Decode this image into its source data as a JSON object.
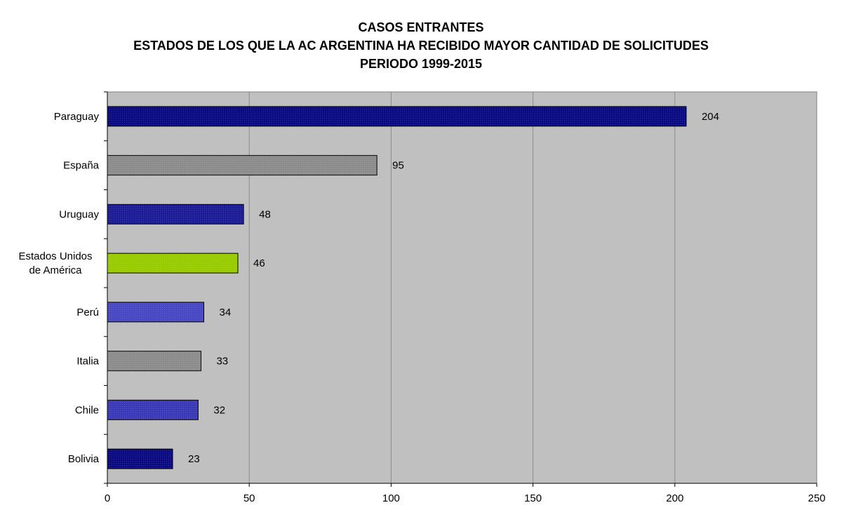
{
  "chart_data": {
    "type": "bar",
    "orientation": "horizontal",
    "title": [
      "CASOS ENTRANTES",
      "ESTADOS DE LOS QUE LA AC ARGENTINA HA RECIBIDO MAYOR CANTIDAD DE SOLICITUDES",
      "PERIODO 1999-2015"
    ],
    "categories": [
      [
        "Paraguay"
      ],
      [
        "España"
      ],
      [
        "Uruguay"
      ],
      [
        "Estados Unidos",
        "de América"
      ],
      [
        "Perú"
      ],
      [
        "Italia"
      ],
      [
        "Chile"
      ],
      [
        "Bolivia"
      ]
    ],
    "values": [
      204,
      95,
      48,
      46,
      34,
      33,
      32,
      23
    ],
    "bar_colors": [
      "#0a0a82",
      "#8c8c8c",
      "#1c1c96",
      "#99cc00",
      "#4848c4",
      "#8c8c8c",
      "#3a3ab8",
      "#0a0a82"
    ],
    "xlim": [
      0,
      250
    ],
    "x_ticks": [
      0,
      50,
      100,
      150,
      200,
      250
    ],
    "grid": true,
    "plot_background": "#c0c0c0",
    "xlabel": "",
    "ylabel": ""
  }
}
